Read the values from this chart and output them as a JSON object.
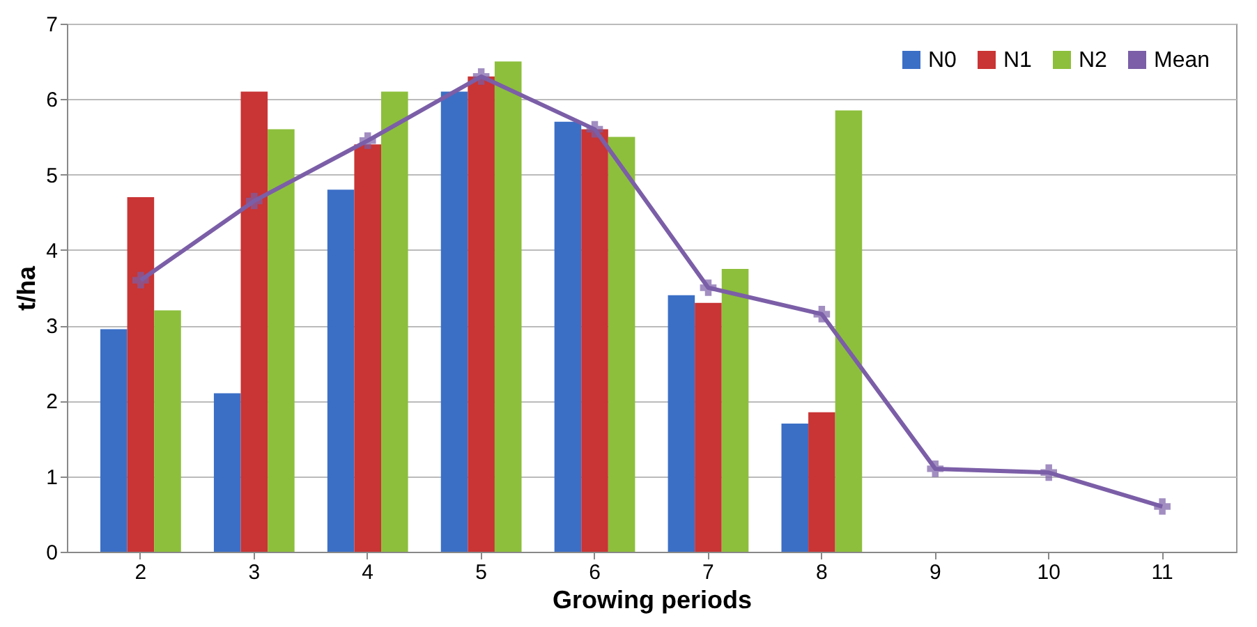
{
  "chart_data": {
    "type": "bar",
    "xlabel": "Growing periods",
    "ylabel": "t/ha",
    "categories": [
      "2",
      "3",
      "4",
      "5",
      "6",
      "7",
      "8",
      "9",
      "10",
      "11"
    ],
    "series": [
      {
        "name": "N0",
        "color": "#3b6fc6",
        "values": [
          2.95,
          2.1,
          4.8,
          6.1,
          5.7,
          3.4,
          1.7,
          null,
          null,
          null
        ]
      },
      {
        "name": "N1",
        "color": "#c93434",
        "values": [
          4.7,
          6.1,
          5.4,
          6.3,
          5.6,
          3.3,
          1.85,
          null,
          null,
          null
        ]
      },
      {
        "name": "N2",
        "color": "#8dbf3c",
        "values": [
          3.2,
          5.6,
          6.1,
          6.5,
          5.5,
          3.75,
          5.85,
          null,
          null,
          null
        ]
      },
      {
        "name": "Mean",
        "type": "line",
        "color": "#7b5ea7",
        "marker": "cross",
        "values": [
          3.6,
          4.65,
          5.45,
          6.3,
          5.6,
          3.5,
          3.15,
          1.1,
          1.05,
          0.6
        ]
      }
    ],
    "ylim": [
      0,
      7
    ],
    "yticks": [
      0,
      1,
      2,
      3,
      4,
      5,
      6,
      7
    ],
    "grid": "y",
    "legend": "top right"
  }
}
